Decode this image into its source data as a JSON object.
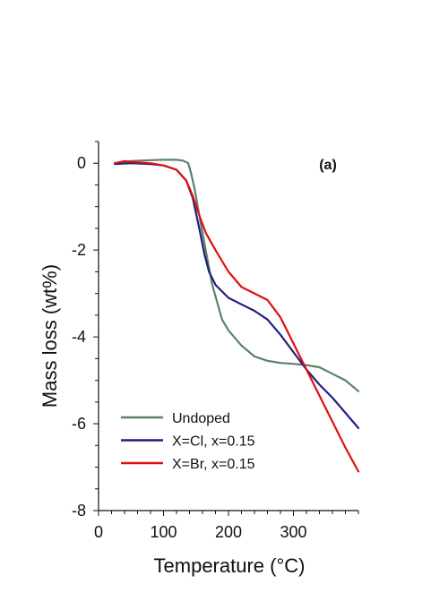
{
  "chart_data": {
    "type": "line",
    "title": "",
    "panel_label": "(a)",
    "xlabel": "Temperature (°C)",
    "ylabel": "Mass loss (wt%)",
    "xlim": [
      0,
      400
    ],
    "ylim": [
      -8,
      0.5
    ],
    "x_ticks": [
      0,
      100,
      200,
      300
    ],
    "y_ticks": [
      0,
      -2,
      -4,
      -6,
      -8
    ],
    "grid": false,
    "legend_position": "bottom-left",
    "series": [
      {
        "name": "Undoped",
        "color": "#5b8266",
        "points": [
          [
            25,
            0.0
          ],
          [
            50,
            0.05
          ],
          [
            80,
            0.07
          ],
          [
            100,
            0.08
          ],
          [
            120,
            0.08
          ],
          [
            130,
            0.06
          ],
          [
            138,
            0.0
          ],
          [
            142,
            -0.2
          ],
          [
            148,
            -0.6
          ],
          [
            155,
            -1.2
          ],
          [
            165,
            -2.0
          ],
          [
            175,
            -2.8
          ],
          [
            190,
            -3.6
          ],
          [
            200,
            -3.85
          ],
          [
            220,
            -4.2
          ],
          [
            240,
            -4.45
          ],
          [
            260,
            -4.55
          ],
          [
            280,
            -4.6
          ],
          [
            300,
            -4.62
          ],
          [
            320,
            -4.65
          ],
          [
            340,
            -4.7
          ],
          [
            360,
            -4.85
          ],
          [
            380,
            -5.0
          ],
          [
            400,
            -5.25
          ]
        ]
      },
      {
        "name": "X=Cl, x=0.15",
        "color": "#1f1f80",
        "points": [
          [
            25,
            -0.02
          ],
          [
            50,
            0.0
          ],
          [
            80,
            -0.02
          ],
          [
            100,
            -0.05
          ],
          [
            120,
            -0.15
          ],
          [
            135,
            -0.4
          ],
          [
            145,
            -0.8
          ],
          [
            155,
            -1.5
          ],
          [
            163,
            -2.1
          ],
          [
            170,
            -2.5
          ],
          [
            180,
            -2.8
          ],
          [
            200,
            -3.1
          ],
          [
            220,
            -3.25
          ],
          [
            240,
            -3.4
          ],
          [
            260,
            -3.6
          ],
          [
            280,
            -3.95
          ],
          [
            300,
            -4.35
          ],
          [
            320,
            -4.75
          ],
          [
            340,
            -5.1
          ],
          [
            360,
            -5.4
          ],
          [
            380,
            -5.75
          ],
          [
            400,
            -6.1
          ]
        ]
      },
      {
        "name": "X=Br, x=0.15",
        "color": "#e01010",
        "points": [
          [
            25,
            0.0
          ],
          [
            40,
            0.05
          ],
          [
            60,
            0.02
          ],
          [
            80,
            0.0
          ],
          [
            100,
            -0.05
          ],
          [
            120,
            -0.15
          ],
          [
            135,
            -0.4
          ],
          [
            145,
            -0.75
          ],
          [
            155,
            -1.2
          ],
          [
            165,
            -1.6
          ],
          [
            180,
            -2.0
          ],
          [
            200,
            -2.5
          ],
          [
            220,
            -2.85
          ],
          [
            240,
            -3.0
          ],
          [
            260,
            -3.15
          ],
          [
            280,
            -3.55
          ],
          [
            300,
            -4.15
          ],
          [
            320,
            -4.75
          ],
          [
            340,
            -5.35
          ],
          [
            360,
            -5.95
          ],
          [
            380,
            -6.55
          ],
          [
            400,
            -7.1
          ]
        ]
      }
    ]
  }
}
